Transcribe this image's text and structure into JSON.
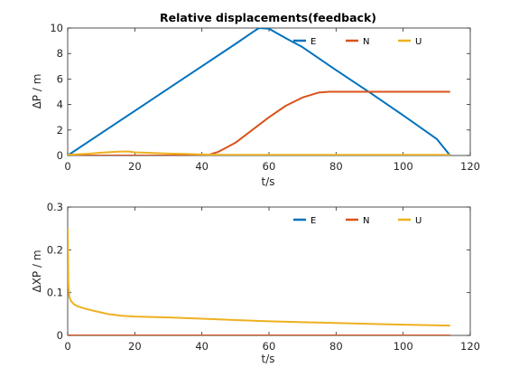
{
  "chart_data": [
    {
      "type": "line",
      "title": "Relative displacements(feedback)",
      "xlabel": "t/s",
      "ylabel": "ΔP / m",
      "xlim": [
        0,
        120
      ],
      "ylim": [
        0,
        10
      ],
      "xticks": [
        "0",
        "20",
        "40",
        "60",
        "80",
        "100",
        "120"
      ],
      "yticks": [
        "0",
        "2",
        "4",
        "6",
        "8",
        "10"
      ],
      "grid": false,
      "legend": "top-right",
      "series": [
        {
          "name": "E",
          "color": "#0072BD",
          "x": [
            0,
            10,
            20,
            30,
            40,
            50,
            55,
            57,
            60,
            65,
            70,
            80,
            90,
            100,
            110,
            114
          ],
          "y": [
            0,
            1.75,
            3.5,
            5.25,
            7.0,
            8.75,
            9.65,
            10.0,
            9.95,
            9.2,
            8.5,
            6.7,
            4.95,
            3.15,
            1.3,
            0
          ]
        },
        {
          "name": "N",
          "color": "#D95319",
          "x": [
            0,
            30,
            40,
            42,
            45,
            50,
            55,
            60,
            65,
            70,
            75,
            78,
            80,
            90,
            100,
            114
          ],
          "y": [
            0,
            0,
            0,
            0.05,
            0.3,
            1.0,
            2.0,
            3.0,
            3.9,
            4.55,
            4.95,
            5.0,
            5.0,
            5.0,
            5.0,
            5.0
          ]
        },
        {
          "name": "U",
          "color": "#EDB120",
          "x": [
            0,
            5,
            10,
            15,
            18,
            20,
            25,
            30,
            35,
            40,
            45,
            50,
            60,
            80,
            100,
            114
          ],
          "y": [
            0.05,
            0.12,
            0.22,
            0.3,
            0.32,
            0.25,
            0.2,
            0.15,
            0.12,
            0.08,
            0.05,
            0.05,
            0.05,
            0.05,
            0.05,
            0.05
          ]
        }
      ]
    },
    {
      "type": "line",
      "title": "",
      "xlabel": "t/s",
      "ylabel": "ΔXP / m",
      "xlim": [
        0,
        120
      ],
      "ylim": [
        0,
        0.3
      ],
      "xticks": [
        "0",
        "20",
        "40",
        "60",
        "80",
        "100",
        "120"
      ],
      "yticks": [
        "0",
        "0.1",
        "0.2",
        "0.3"
      ],
      "grid": false,
      "legend": "top-right",
      "series": [
        {
          "name": "E",
          "color": "#0072BD",
          "x": [
            0,
            114
          ],
          "y": [
            0,
            0
          ]
        },
        {
          "name": "N",
          "color": "#D95319",
          "x": [
            0,
            114
          ],
          "y": [
            0,
            0
          ]
        },
        {
          "name": "U",
          "color": "#EDB120",
          "x": [
            0,
            0.2,
            0.5,
            1,
            2,
            3,
            5,
            8,
            12,
            16,
            20,
            30,
            40,
            50,
            60,
            70,
            80,
            90,
            100,
            114
          ],
          "y": [
            0.25,
            0.12,
            0.09,
            0.08,
            0.072,
            0.068,
            0.063,
            0.057,
            0.05,
            0.046,
            0.044,
            0.042,
            0.039,
            0.036,
            0.033,
            0.031,
            0.029,
            0.027,
            0.025,
            0.023
          ]
        }
      ]
    }
  ]
}
